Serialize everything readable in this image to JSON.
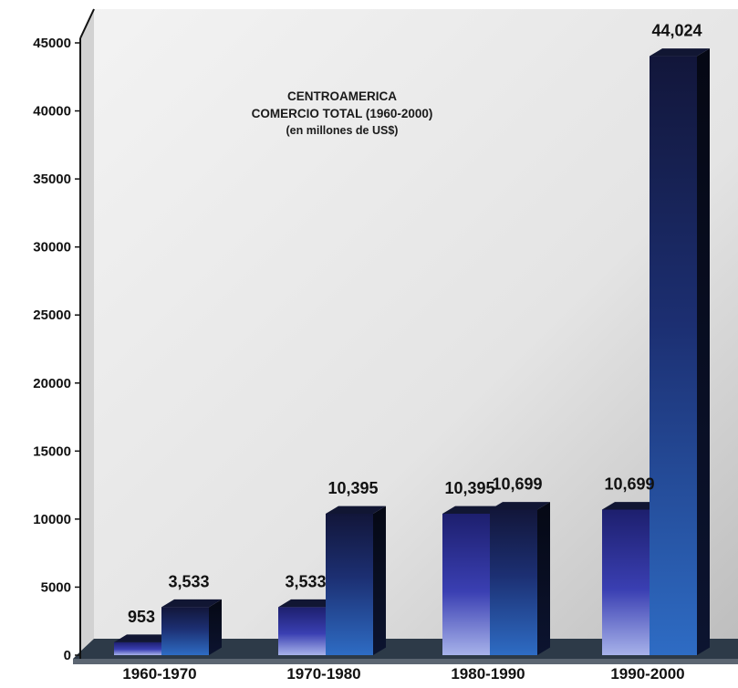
{
  "chart_data": {
    "type": "bar",
    "title": [
      "CENTROAMERICA",
      "COMERCIO TOTAL (1960-2000)",
      "(en millones de US$)"
    ],
    "categories": [
      "1960-1970",
      "1970-1980",
      "1980-1990",
      "1990-2000"
    ],
    "series": [
      {
        "values": [
          953,
          3533,
          10395,
          10699
        ],
        "labels": [
          "953",
          "3,533",
          "10,395",
          "10,699"
        ],
        "color": "#3b3fb0"
      },
      {
        "values": [
          3533,
          10395,
          10699,
          44024
        ],
        "labels": [
          "3,533",
          "10,395",
          "10,699",
          "44,024"
        ],
        "color": "#1a3a8a"
      }
    ],
    "yticks": [
      "0",
      "5000",
      "10000",
      "15000",
      "20000",
      "25000",
      "30000",
      "35000",
      "40000",
      "45000"
    ],
    "ylim": [
      0,
      45000
    ],
    "grid": false,
    "legend": "none"
  },
  "colors": {
    "wall_light": "#f0f0f0",
    "wall_dark": "#bcbcbc",
    "floor": "#2d3a48",
    "bar_top_dark": "#111633"
  }
}
